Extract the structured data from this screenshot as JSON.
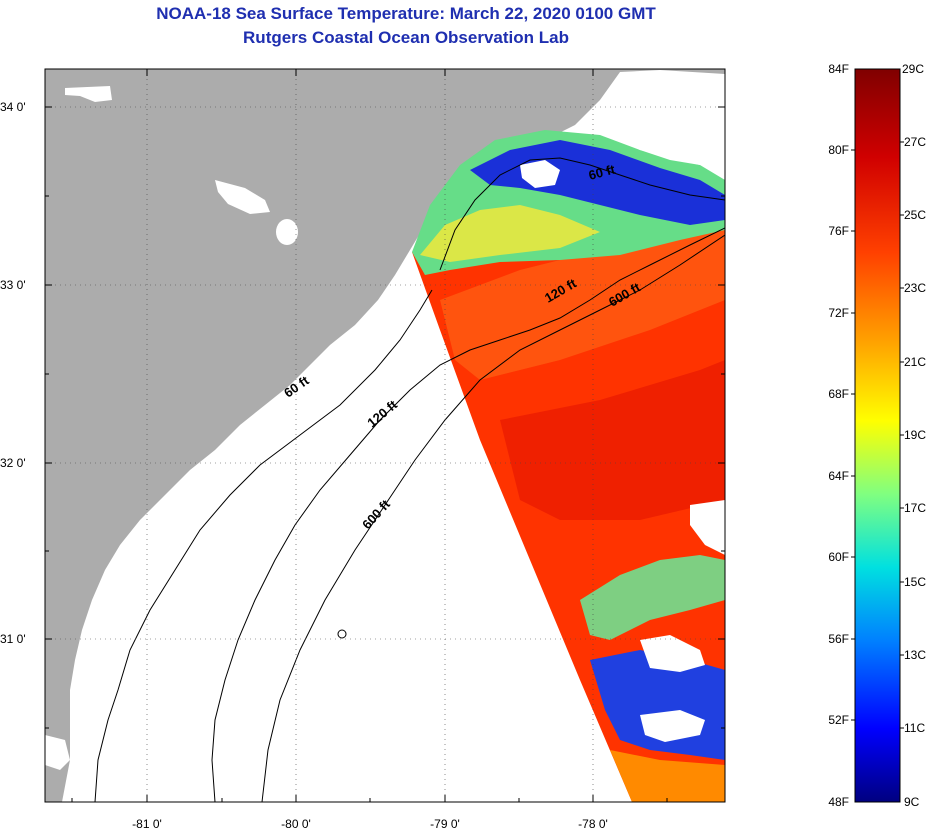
{
  "title": {
    "line1": "NOAA-18 Sea Surface Temperature:  March 22, 2020 0100 GMT",
    "line2": "Rutgers Coastal Ocean Observation Lab"
  },
  "map": {
    "lat_labels": [
      "34 0'",
      "33 0'",
      "32 0'",
      "31 0'"
    ],
    "lon_labels": [
      "-81 0'",
      "-80 0'",
      "-79 0'",
      "-78 0'"
    ],
    "isobaths": [
      "60 ft",
      "120 ft",
      "600 ft"
    ],
    "contour_labels": [
      {
        "text": "60 ft"
      },
      {
        "text": "120 ft"
      },
      {
        "text": "600 ft"
      },
      {
        "text": "60 ft"
      },
      {
        "text": "120 ft"
      },
      {
        "text": "600 ft"
      }
    ],
    "colors": {
      "land": "#acacac",
      "water": "#ffffff",
      "frame": "#000000",
      "title": "#1f2fb0"
    }
  },
  "colorbar": {
    "fahrenheit": [
      "84F",
      "80F",
      "76F",
      "72F",
      "68F",
      "64F",
      "60F",
      "56F",
      "52F",
      "48F"
    ],
    "celsius": [
      "29C",
      "27C",
      "25C",
      "23C",
      "21C",
      "19C",
      "17C",
      "15C",
      "13C",
      "11C",
      "9C"
    ],
    "gradient": [
      "#000080",
      "#0000ff",
      "#0080ff",
      "#00ffff",
      "#80ff80",
      "#ffff00",
      "#ff8000",
      "#ff0000",
      "#800000"
    ]
  }
}
